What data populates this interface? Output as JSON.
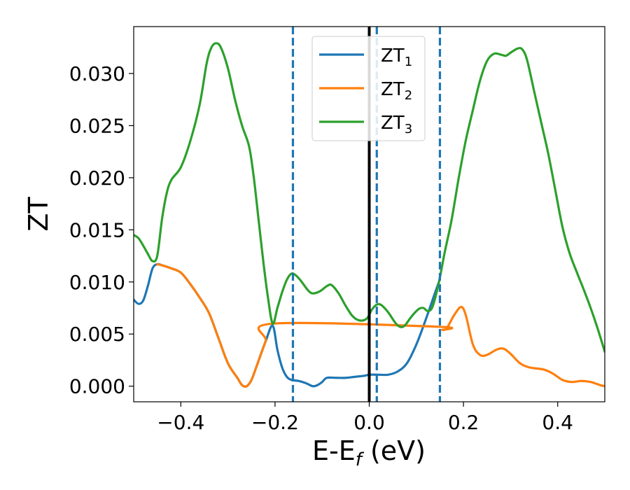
{
  "chart_data": {
    "type": "line",
    "xlabel": {
      "base": "E-E",
      "sub": "f",
      "unit": " (eV)"
    },
    "ylabel": "ZT",
    "xlim": [
      -0.5,
      0.5
    ],
    "ylim": [
      -0.0015,
      0.0345
    ],
    "x_ticks": [
      -0.4,
      -0.2,
      0.0,
      0.2,
      0.4
    ],
    "x_tick_labels": [
      "−0.4",
      "−0.2",
      "0.0",
      "0.2",
      "0.4"
    ],
    "y_ticks": [
      0.0,
      0.005,
      0.01,
      0.015,
      0.02,
      0.025,
      0.03
    ],
    "y_tick_labels": [
      "0.000",
      "0.005",
      "0.010",
      "0.015",
      "0.020",
      "0.025",
      "0.030"
    ],
    "grid": false,
    "legend_placement": "top-center",
    "vlines": [
      {
        "x": 0.0,
        "style": "solid",
        "color": "#000000"
      },
      {
        "x": -0.162,
        "style": "dashed",
        "color": "#1f77b4"
      },
      {
        "x": 0.016,
        "style": "dashed",
        "color": "#1f77b4"
      },
      {
        "x": 0.15,
        "style": "dashed",
        "color": "#1f77b4"
      }
    ],
    "series": [
      {
        "name": {
          "base": "ZT",
          "sub": "1"
        },
        "color": "#1f77b4",
        "points": [
          [
            -0.5,
            0.0083
          ],
          [
            -0.49,
            0.0079
          ],
          [
            -0.48,
            0.0082
          ],
          [
            -0.47,
            0.0096
          ],
          [
            -0.46,
            0.0113
          ],
          [
            -0.45,
            0.0117
          ],
          [
            -0.44,
            0.0116
          ],
          [
            -0.42,
            0.0113
          ],
          [
            -0.4,
            0.0109
          ],
          [
            -0.38,
            0.0098
          ],
          [
            -0.36,
            0.0085
          ],
          [
            -0.34,
            0.007
          ],
          [
            -0.32,
            0.0046
          ],
          [
            -0.3,
            0.0022
          ],
          [
            -0.28,
            0.0008
          ],
          [
            -0.27,
            0.0001
          ],
          [
            -0.26,
            0.0
          ],
          [
            -0.25,
            0.0006
          ],
          [
            -0.24,
            0.0018
          ],
          [
            -0.22,
            0.0043
          ],
          [
            -0.205,
            0.0058
          ],
          [
            -0.195,
            0.0035
          ],
          [
            -0.185,
            0.0018
          ],
          [
            -0.175,
            0.0009
          ],
          [
            -0.165,
            0.0006
          ],
          [
            -0.15,
            0.0005
          ],
          [
            -0.135,
            0.0003
          ],
          [
            -0.12,
            0.0
          ],
          [
            -0.11,
            0.0001
          ],
          [
            -0.1,
            0.0004
          ],
          [
            -0.09,
            0.0008
          ],
          [
            -0.07,
            0.0008
          ],
          [
            -0.05,
            0.0008
          ],
          [
            -0.03,
            0.0009
          ],
          [
            -0.01,
            0.001
          ],
          [
            0.0,
            0.0011
          ],
          [
            0.02,
            0.0011
          ],
          [
            0.04,
            0.0011
          ],
          [
            0.06,
            0.0014
          ],
          [
            0.08,
            0.0022
          ],
          [
            0.1,
            0.004
          ],
          [
            0.12,
            0.0064
          ],
          [
            0.14,
            0.009
          ],
          [
            0.148,
            0.01
          ]
        ]
      },
      {
        "name": {
          "base": "ZT",
          "sub": "2"
        },
        "color": "#ff7f0e",
        "points": [
          [
            -0.45,
            0.0117
          ],
          [
            -0.44,
            0.0116
          ],
          [
            -0.42,
            0.0113
          ],
          [
            -0.4,
            0.0109
          ],
          [
            -0.38,
            0.0098
          ],
          [
            -0.36,
            0.0085
          ],
          [
            -0.34,
            0.007
          ],
          [
            -0.32,
            0.0046
          ],
          [
            -0.3,
            0.0022
          ],
          [
            -0.28,
            0.0008
          ],
          [
            -0.27,
            0.0001
          ],
          [
            -0.26,
            0.0
          ],
          [
            -0.25,
            0.0006
          ],
          [
            -0.24,
            0.0018
          ],
          [
            -0.22,
            0.0043
          ],
          [
            -0.205,
            0.006
          ],
          [
            0.148,
            0.0057
          ],
          [
            0.155,
            0.0054
          ],
          [
            0.165,
            0.0056
          ],
          [
            0.18,
            0.0068
          ],
          [
            0.195,
            0.0076
          ],
          [
            0.205,
            0.0068
          ],
          [
            0.22,
            0.004
          ],
          [
            0.235,
            0.003
          ],
          [
            0.25,
            0.003
          ],
          [
            0.27,
            0.0035
          ],
          [
            0.285,
            0.0036
          ],
          [
            0.3,
            0.0031
          ],
          [
            0.32,
            0.0022
          ],
          [
            0.34,
            0.0018
          ],
          [
            0.37,
            0.0016
          ],
          [
            0.39,
            0.0012
          ],
          [
            0.41,
            0.0006
          ],
          [
            0.43,
            0.0004
          ],
          [
            0.45,
            0.0005
          ],
          [
            0.47,
            0.0004
          ],
          [
            0.49,
            0.0001
          ],
          [
            0.5,
            0.0
          ]
        ]
      },
      {
        "name": {
          "base": "ZT",
          "sub": "3"
        },
        "color": "#2ca02c",
        "points": [
          [
            -0.5,
            0.0145
          ],
          [
            -0.49,
            0.0142
          ],
          [
            -0.48,
            0.0135
          ],
          [
            -0.47,
            0.0127
          ],
          [
            -0.46,
            0.012
          ],
          [
            -0.45,
            0.0125
          ],
          [
            -0.44,
            0.016
          ],
          [
            -0.43,
            0.0185
          ],
          [
            -0.42,
            0.0198
          ],
          [
            -0.4,
            0.021
          ],
          [
            -0.38,
            0.0235
          ],
          [
            -0.36,
            0.027
          ],
          [
            -0.345,
            0.031
          ],
          [
            -0.335,
            0.0325
          ],
          [
            -0.325,
            0.0329
          ],
          [
            -0.315,
            0.0325
          ],
          [
            -0.3,
            0.0305
          ],
          [
            -0.285,
            0.0275
          ],
          [
            -0.27,
            0.025
          ],
          [
            -0.255,
            0.023
          ],
          [
            -0.245,
            0.02
          ],
          [
            -0.235,
            0.016
          ],
          [
            -0.225,
            0.012
          ],
          [
            -0.215,
            0.0085
          ],
          [
            -0.205,
            0.006
          ],
          [
            -0.195,
            0.0075
          ],
          [
            -0.185,
            0.009
          ],
          [
            -0.175,
            0.0102
          ],
          [
            -0.165,
            0.0108
          ],
          [
            -0.155,
            0.0106
          ],
          [
            -0.145,
            0.0101
          ],
          [
            -0.13,
            0.0092
          ],
          [
            -0.12,
            0.0089
          ],
          [
            -0.105,
            0.0091
          ],
          [
            -0.09,
            0.0096
          ],
          [
            -0.08,
            0.0097
          ],
          [
            -0.065,
            0.0089
          ],
          [
            -0.05,
            0.0077
          ],
          [
            -0.035,
            0.0067
          ],
          [
            -0.02,
            0.0063
          ],
          [
            -0.005,
            0.0065
          ],
          [
            0.005,
            0.0073
          ],
          [
            0.015,
            0.0078
          ],
          [
            0.025,
            0.0078
          ],
          [
            0.04,
            0.0071
          ],
          [
            0.055,
            0.0061
          ],
          [
            0.065,
            0.0057
          ],
          [
            0.075,
            0.0058
          ],
          [
            0.09,
            0.0067
          ],
          [
            0.105,
            0.0074
          ],
          [
            0.115,
            0.0075
          ],
          [
            0.125,
            0.0072
          ],
          [
            0.135,
            0.0077
          ],
          [
            0.148,
            0.01
          ],
          [
            0.16,
            0.0128
          ],
          [
            0.175,
            0.016
          ],
          [
            0.19,
            0.02
          ],
          [
            0.205,
            0.0236
          ],
          [
            0.22,
            0.0265
          ],
          [
            0.235,
            0.0293
          ],
          [
            0.25,
            0.0312
          ],
          [
            0.265,
            0.0319
          ],
          [
            0.28,
            0.0318
          ],
          [
            0.29,
            0.0317
          ],
          [
            0.3,
            0.032
          ],
          [
            0.315,
            0.0324
          ],
          [
            0.325,
            0.0323
          ],
          [
            0.335,
            0.0313
          ],
          [
            0.35,
            0.0283
          ],
          [
            0.365,
            0.0253
          ],
          [
            0.38,
            0.0223
          ],
          [
            0.395,
            0.0188
          ],
          [
            0.41,
            0.0153
          ],
          [
            0.425,
            0.0128
          ],
          [
            0.44,
            0.011
          ],
          [
            0.455,
            0.0093
          ],
          [
            0.47,
            0.0075
          ],
          [
            0.485,
            0.0055
          ],
          [
            0.5,
            0.0033
          ]
        ]
      }
    ]
  }
}
